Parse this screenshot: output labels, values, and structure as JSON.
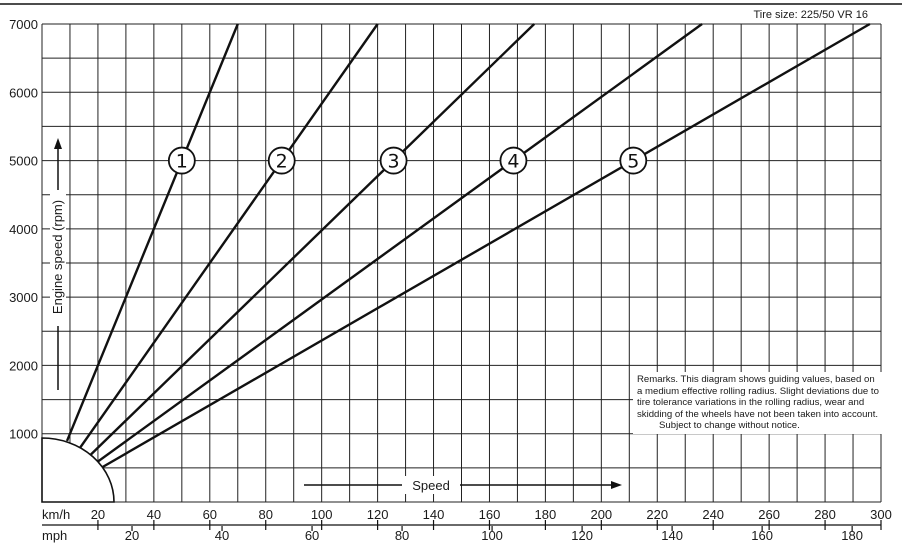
{
  "chart_data": {
    "type": "line",
    "note_top_right": "Tire size: 225/50 VR 16",
    "ylabel": "Engine speed (rpm)",
    "xlabel": "Speed",
    "x_unit_primary": "km/h",
    "x_unit_secondary": "mph",
    "xlim_kmh": [
      0,
      300
    ],
    "ylim": [
      0,
      7000
    ],
    "y_ticks": [
      1000,
      2000,
      3000,
      4000,
      5000,
      6000,
      7000
    ],
    "x_ticks_kmh": [
      20,
      40,
      60,
      80,
      100,
      120,
      140,
      160,
      180,
      200,
      220,
      240,
      260,
      280,
      300
    ],
    "x_ticks_mph": [
      20,
      40,
      60,
      80,
      100,
      120,
      140,
      160,
      180
    ],
    "grid": true,
    "series": [
      {
        "name": "1",
        "points": [
          [
            0,
            0
          ],
          [
            70,
            7000
          ]
        ],
        "label_at_rpm": 5000
      },
      {
        "name": "2",
        "points": [
          [
            0,
            0
          ],
          [
            120,
            7000
          ]
        ],
        "label_at_rpm": 5000
      },
      {
        "name": "3",
        "points": [
          [
            0,
            0
          ],
          [
            176,
            7000
          ]
        ],
        "label_at_rpm": 5000
      },
      {
        "name": "4",
        "points": [
          [
            0,
            0
          ],
          [
            236,
            7000
          ]
        ],
        "label_at_rpm": 5000
      },
      {
        "name": "5",
        "points": [
          [
            0,
            0
          ],
          [
            296,
            7000
          ]
        ],
        "label_at_rpm": 5000
      }
    ],
    "remarks": {
      "text": "Remarks. This diagram shows guiding values, based on a medium effective rolling radius. Slight deviations due to tire tolerance variations in the rolling radius, wear and skidding of the wheels have not been taken into account.",
      "notice": "Subject to change without notice."
    }
  }
}
